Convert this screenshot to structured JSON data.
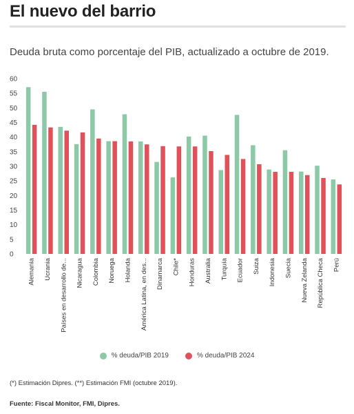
{
  "header": {
    "title": "El nuevo del barrio",
    "subtitle": "Deuda bruta como porcentaje del PIB, actualizado a octubre de 2019."
  },
  "footer": {
    "note": "(*) Estimación Dipres. (**) Estimación FMI (octubre 2019).",
    "source": "Fuente: Fiscal Monitor, FMI, Dipres."
  },
  "colors": {
    "s2019": "#8cc9a6",
    "s2024": "#e0525a",
    "grid": "#e6e6e6"
  },
  "chart_data": {
    "type": "bar",
    "categories": [
      "Alemania",
      "Ucrania",
      "Países en desarrollo de...",
      "Nicaragua",
      "Colombia",
      "Noruega",
      "Holanda",
      "América Latina, en des...",
      "Dinamarca",
      "Chile*",
      "Honduras",
      "Australia",
      "Turquía",
      "Ecuador",
      "Suiza",
      "Indonesia",
      "Suecia",
      "Nueva Zelanda",
      "República Checa",
      "Perú"
    ],
    "series": [
      {
        "name": "% deuda/PIB 2019",
        "values": [
          57.1,
          55.5,
          43.5,
          37.6,
          49.5,
          38.6,
          47.8,
          38.5,
          31.5,
          26.2,
          40.2,
          40.5,
          28.7,
          47.6,
          37.2,
          28.9,
          35.5,
          28.2,
          30.2,
          25.5
        ]
      },
      {
        "name": "% deuda/PIB 2024",
        "values": [
          44.2,
          43.3,
          42.2,
          41.6,
          39.5,
          38.6,
          38.5,
          37.5,
          36.9,
          36.8,
          36.8,
          35.2,
          33.9,
          32.5,
          30.7,
          28.1,
          28.1,
          27.0,
          26.0,
          23.8
        ]
      }
    ],
    "ylim": [
      0,
      60
    ],
    "yticks": [
      0,
      5,
      10,
      15,
      20,
      25,
      30,
      35,
      40,
      45,
      50,
      55,
      60
    ],
    "legend": "bottom-center",
    "grid": false
  }
}
